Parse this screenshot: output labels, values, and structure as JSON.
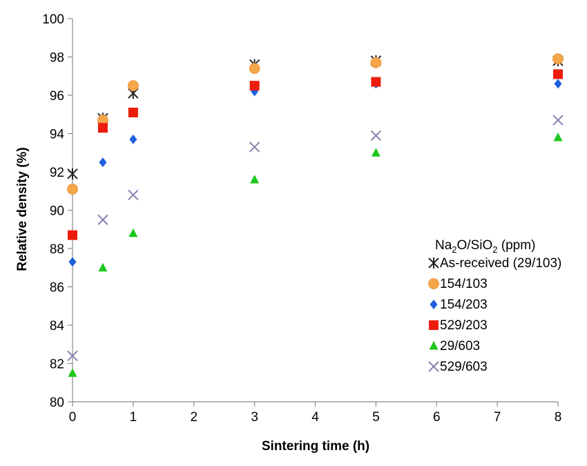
{
  "chart_data": {
    "type": "scatter",
    "xlabel": "Sintering time (h)",
    "ylabel": "Relative density (%)",
    "xlim": [
      0,
      8
    ],
    "ylim": [
      80,
      100
    ],
    "xticks": [
      "0",
      "1",
      "2",
      "3",
      "4",
      "5",
      "6",
      "7",
      "8"
    ],
    "yticks": [
      "80",
      "82",
      "84",
      "86",
      "88",
      "90",
      "92",
      "94",
      "96",
      "98",
      "100"
    ],
    "grid": false,
    "legend_position": "right",
    "legend_title": {
      "pre": "Na",
      "sub1": "2",
      "mid": "O/SiO",
      "sub2": "2",
      "post": " (ppm)"
    },
    "series": [
      {
        "name": "As-received (29/103)",
        "marker": "asterisk",
        "color": "#222222",
        "points": [
          [
            0,
            91.9
          ],
          [
            0.5,
            94.8
          ],
          [
            1,
            96.1
          ],
          [
            3,
            97.6
          ],
          [
            5,
            97.8
          ],
          [
            8,
            97.8
          ]
        ]
      },
      {
        "name": "154/103",
        "marker": "circle",
        "color": "#f5a54a",
        "points": [
          [
            0,
            91.1
          ],
          [
            0.5,
            94.7
          ],
          [
            1,
            96.5
          ],
          [
            3,
            97.4
          ],
          [
            5,
            97.7
          ],
          [
            8,
            97.9
          ]
        ]
      },
      {
        "name": "154/203",
        "marker": "diamond",
        "color": "#1f5fe0",
        "points": [
          [
            0,
            87.3
          ],
          [
            0.5,
            92.5
          ],
          [
            1,
            93.7
          ],
          [
            3,
            96.2
          ],
          [
            5,
            96.6
          ],
          [
            8,
            96.6
          ]
        ]
      },
      {
        "name": "529/203",
        "marker": "square",
        "color": "#ee1c0c",
        "points": [
          [
            0,
            88.7
          ],
          [
            0.5,
            94.3
          ],
          [
            1,
            95.1
          ],
          [
            3,
            96.5
          ],
          [
            5,
            96.7
          ],
          [
            8,
            97.1
          ]
        ]
      },
      {
        "name": "29/603",
        "marker": "triangle",
        "color": "#1dc81d",
        "points": [
          [
            0,
            81.5
          ],
          [
            0.5,
            87.0
          ],
          [
            1,
            88.8
          ],
          [
            3,
            91.6
          ],
          [
            5,
            93.0
          ],
          [
            8,
            93.8
          ]
        ]
      },
      {
        "name": "529/603",
        "marker": "x",
        "color": "#8e7fb0",
        "points": [
          [
            0,
            82.4
          ],
          [
            0.5,
            89.5
          ],
          [
            1,
            90.8
          ],
          [
            3,
            93.3
          ],
          [
            5,
            93.9
          ],
          [
            8,
            94.7
          ]
        ]
      }
    ]
  }
}
